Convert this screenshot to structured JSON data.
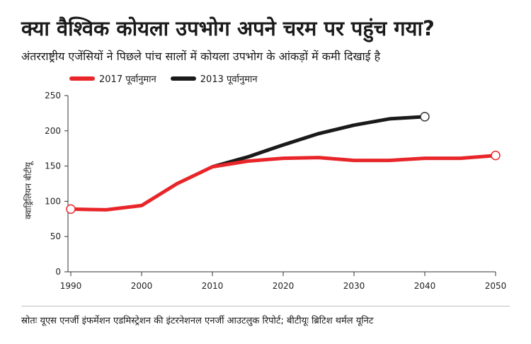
{
  "chart_data": {
    "type": "line",
    "title": "क्या वैश्विक कोयला उपभोग अपने चरम पर पहुंच गया?",
    "subtitle": "अंतरराष्ट्रीय एजेंसियों ने पिछले पांच सालों में कोयला उपभोग के आंकड़ों में कमी दिखाई है",
    "ylabel": "क्वाड्रिलियन बीटीयू",
    "ylim": [
      0,
      250
    ],
    "xlim": [
      1990,
      2050
    ],
    "x_ticks": [
      "1990",
      "2000",
      "2010",
      "2020",
      "2030",
      "2040",
      "2050"
    ],
    "y_ticks": [
      "0",
      "50",
      "100",
      "150",
      "200",
      "250"
    ],
    "grid": false,
    "legend_position": "top-left",
    "series": [
      {
        "name": "2017 पूर्वानुमान",
        "color": "#e8262a",
        "x": [
          1990,
          1995,
          2000,
          2005,
          2010,
          2015,
          2020,
          2025,
          2030,
          2035,
          2040,
          2045,
          2050
        ],
        "y": [
          89,
          88,
          94,
          125,
          149,
          157,
          161,
          162,
          158,
          158,
          161,
          161,
          165
        ]
      },
      {
        "name": "2013 पूर्वानुमान",
        "color": "#1a1a1a",
        "x": [
          2010,
          2015,
          2020,
          2025,
          2030,
          2035,
          2040
        ],
        "y": [
          149,
          163,
          180,
          196,
          208,
          217,
          220
        ]
      }
    ]
  },
  "source": "स्रोतः यूएस एनर्जी इंफर्मेशन एडमिस्ट्रेशन की इंटरनेशनल एनर्जी आउटलुक रिपोर्ट; बीटीयूः ब्रिटिश थर्मल यूनिट"
}
